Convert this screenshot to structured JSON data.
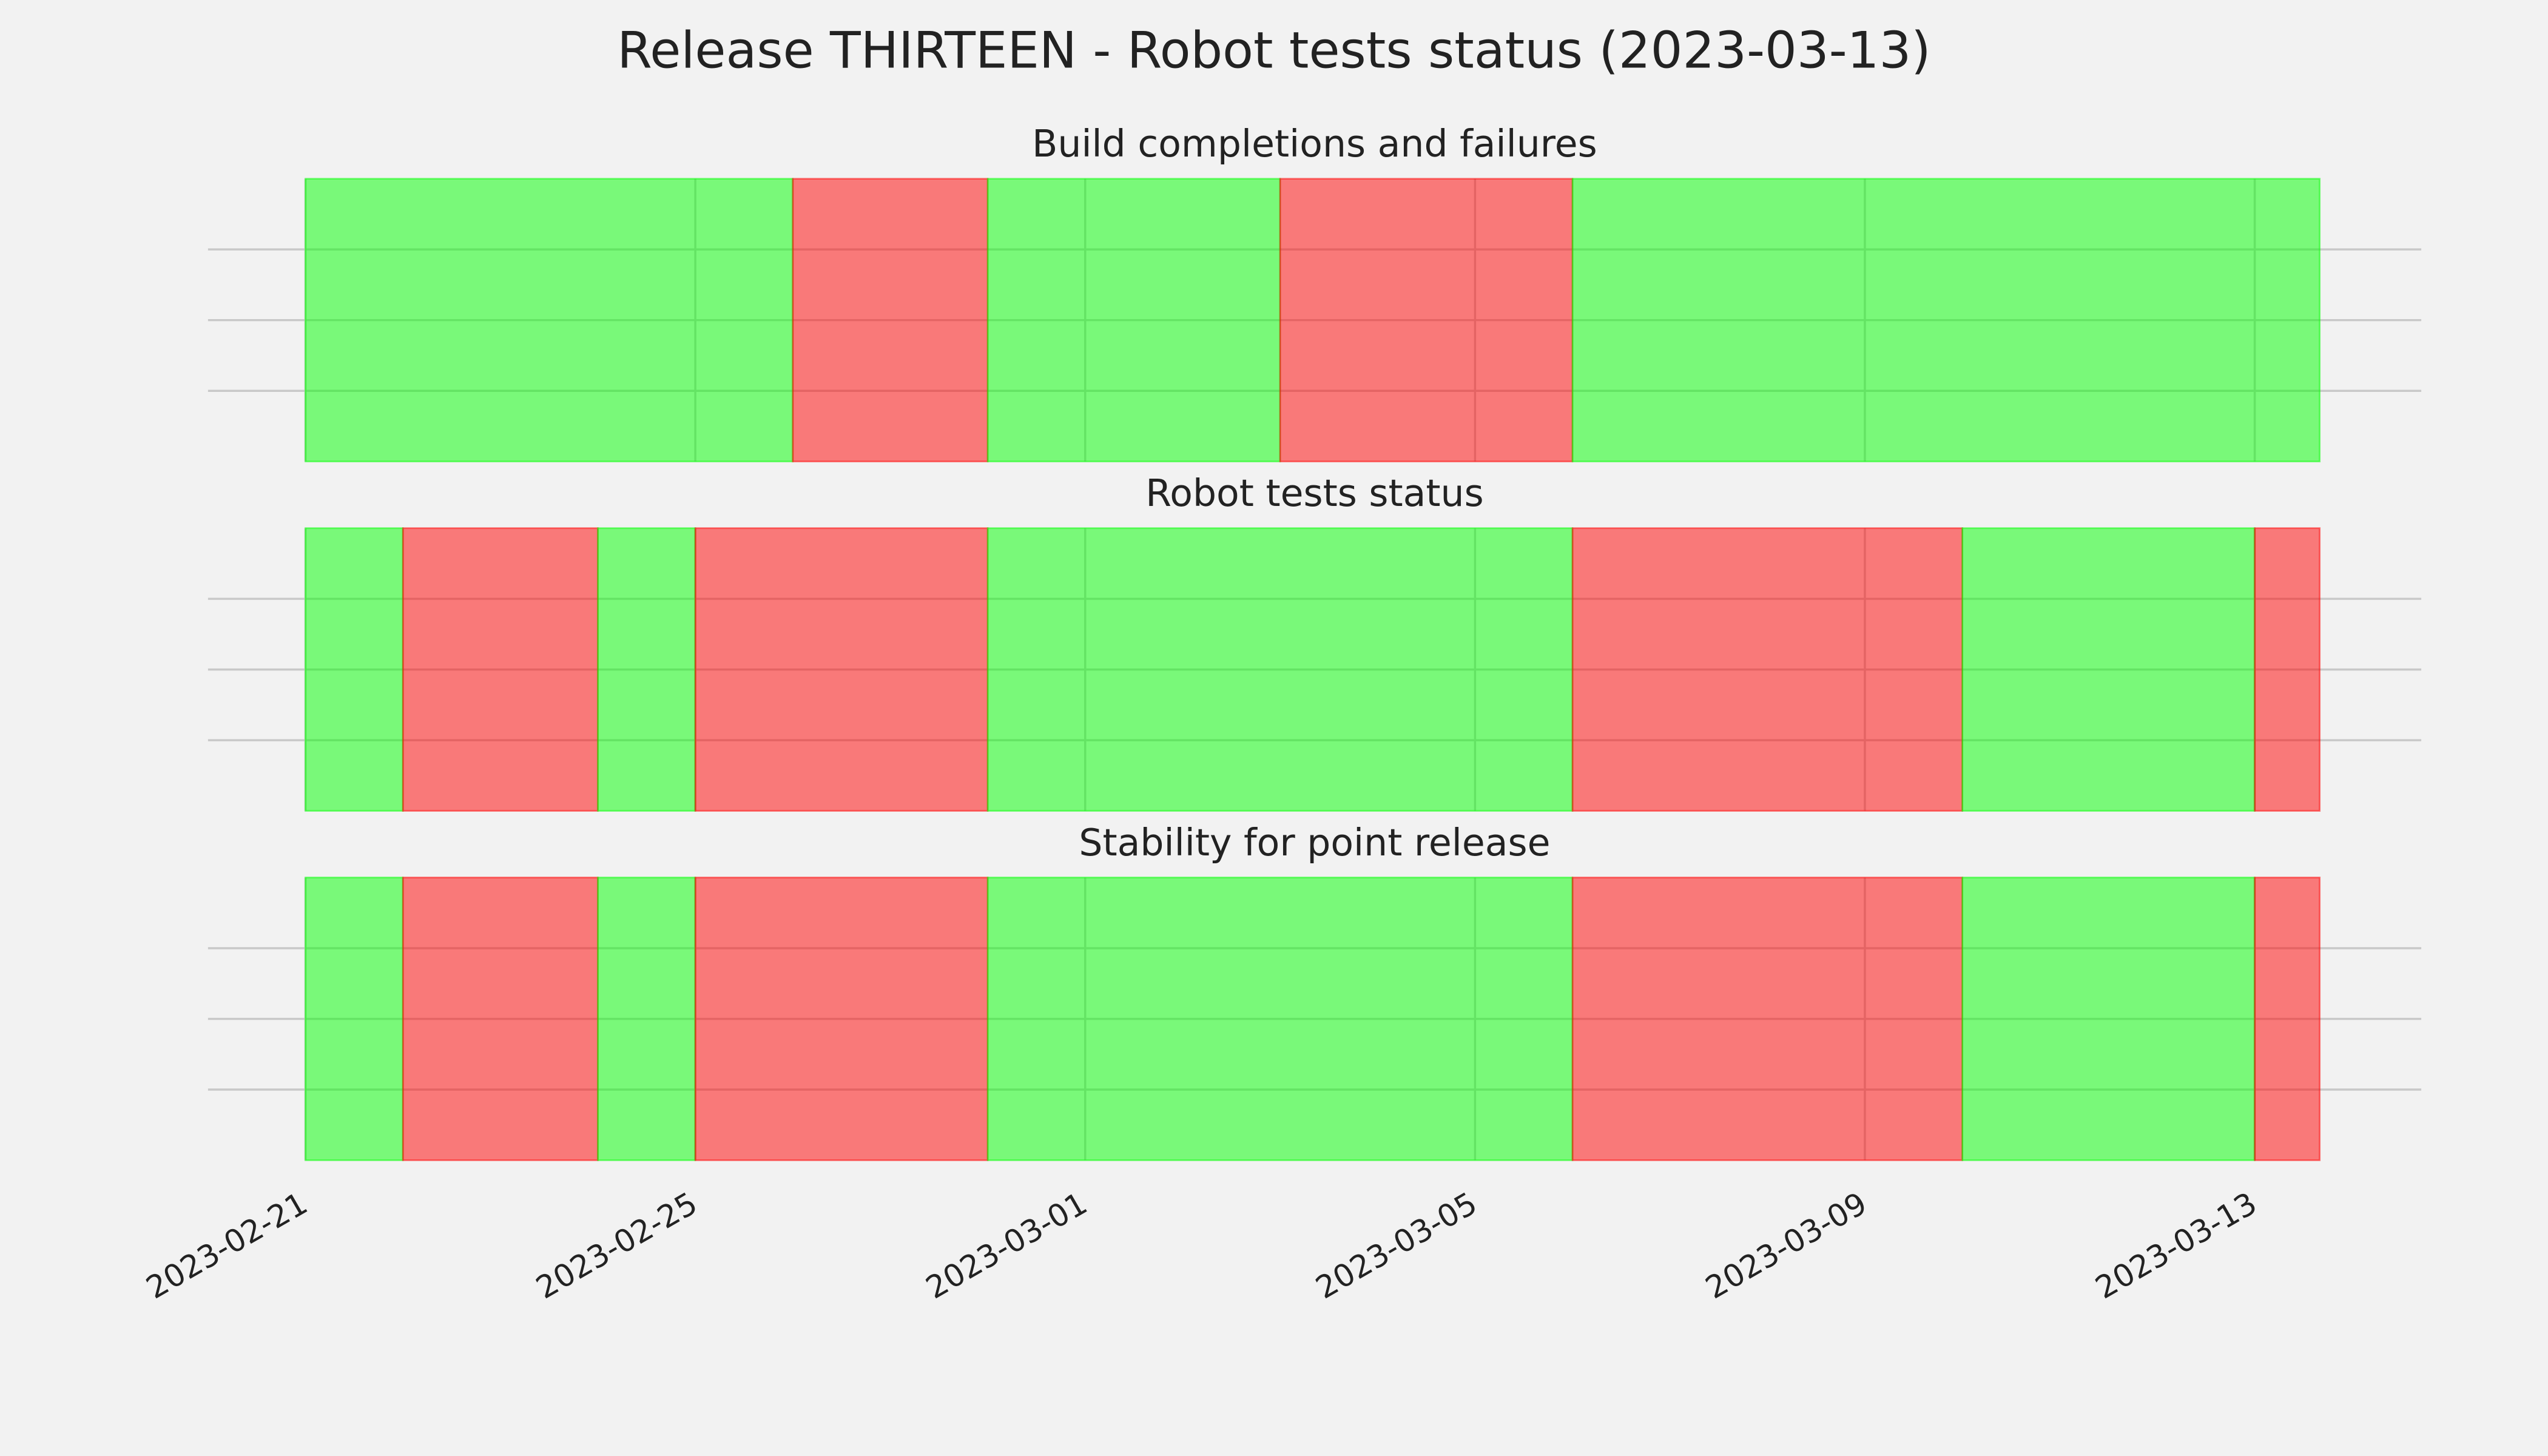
{
  "chart_data": {
    "type": "span",
    "title": "Release THIRTEEN - Robot tests status (2023-03-13)",
    "xlim": [
      "2023-02-20",
      "2023-03-14T17:00"
    ],
    "xticks": [
      "2023-02-21",
      "2023-02-25",
      "2023-03-01",
      "2023-03-05",
      "2023-03-09",
      "2023-03-13"
    ],
    "ylim": [
      0,
      1
    ],
    "yticks": [
      0.25,
      0.5,
      0.75
    ],
    "grid": true,
    "panels": [
      {
        "subtitle": "Build completions and failures",
        "spans": [
          {
            "start": "2023-02-21",
            "end": "2023-02-26",
            "color": "#00ff00"
          },
          {
            "start": "2023-02-26",
            "end": "2023-02-28",
            "color": "#ff0000"
          },
          {
            "start": "2023-02-28",
            "end": "2023-03-03",
            "color": "#00ff00"
          },
          {
            "start": "2023-03-03",
            "end": "2023-03-06",
            "color": "#ff0000"
          },
          {
            "start": "2023-03-06",
            "end": "2023-03-13T16:00",
            "color": "#00ff00"
          }
        ]
      },
      {
        "subtitle": "Robot tests status",
        "spans": [
          {
            "start": "2023-02-21",
            "end": "2023-02-22",
            "color": "#00ff00"
          },
          {
            "start": "2023-02-22",
            "end": "2023-02-24",
            "color": "#ff0000"
          },
          {
            "start": "2023-02-24",
            "end": "2023-02-25",
            "color": "#00ff00"
          },
          {
            "start": "2023-02-25",
            "end": "2023-02-28",
            "color": "#ff0000"
          },
          {
            "start": "2023-02-28",
            "end": "2023-03-06",
            "color": "#00ff00"
          },
          {
            "start": "2023-03-06",
            "end": "2023-03-10",
            "color": "#ff0000"
          },
          {
            "start": "2023-03-10",
            "end": "2023-03-13",
            "color": "#00ff00"
          },
          {
            "start": "2023-03-13",
            "end": "2023-03-13T16:00",
            "color": "#ff0000"
          }
        ]
      },
      {
        "subtitle": "Stability for point release",
        "spans": [
          {
            "start": "2023-02-21",
            "end": "2023-02-22",
            "color": "#00ff00"
          },
          {
            "start": "2023-02-22",
            "end": "2023-02-24",
            "color": "#ff0000"
          },
          {
            "start": "2023-02-24",
            "end": "2023-02-25",
            "color": "#00ff00"
          },
          {
            "start": "2023-02-25",
            "end": "2023-02-28",
            "color": "#ff0000"
          },
          {
            "start": "2023-02-28",
            "end": "2023-03-06",
            "color": "#00ff00"
          },
          {
            "start": "2023-03-06",
            "end": "2023-03-10",
            "color": "#ff0000"
          },
          {
            "start": "2023-03-10",
            "end": "2023-03-13",
            "color": "#00ff00"
          },
          {
            "start": "2023-03-13",
            "end": "2023-03-13T16:00",
            "color": "#ff0000"
          }
        ]
      }
    ]
  }
}
